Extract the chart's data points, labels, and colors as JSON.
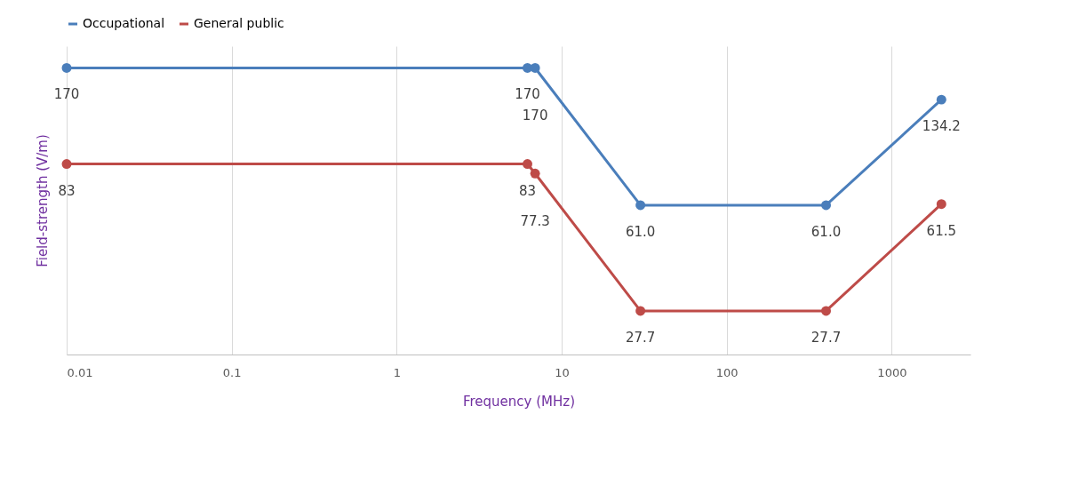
{
  "chart_data": {
    "type": "line",
    "xlabel": "Frequency (MHz)",
    "ylabel": "Field-strength (V/m)",
    "xlim": [
      0.01,
      3000
    ],
    "xticks": [
      0.01,
      0.1,
      1,
      10,
      100,
      1000
    ],
    "ylim": [
      20,
      200
    ],
    "log": "xy",
    "grid": "x",
    "legend": "top",
    "marker": "circle",
    "line_style": "solid",
    "tick_labels": "x",
    "series": [
      {
        "name": "Occupational",
        "color": "#4a7ebb",
        "x": [
          0.01,
          6.2,
          6.9,
          30,
          400,
          2000
        ],
        "values": [
          170,
          170,
          170,
          61.0,
          61.0,
          134.2
        ],
        "value_labels": [
          "170",
          "170",
          "170",
          "61.0",
          "61.0",
          "134.2"
        ]
      },
      {
        "name": "General public",
        "color": "#be4b48",
        "x": [
          0.01,
          6.2,
          6.9,
          30,
          400,
          2000
        ],
        "values": [
          83,
          83,
          77.3,
          27.7,
          27.7,
          61.5
        ],
        "value_labels": [
          "83",
          "83",
          "77.3",
          "27.7",
          "27.7",
          "61.5"
        ]
      }
    ]
  }
}
